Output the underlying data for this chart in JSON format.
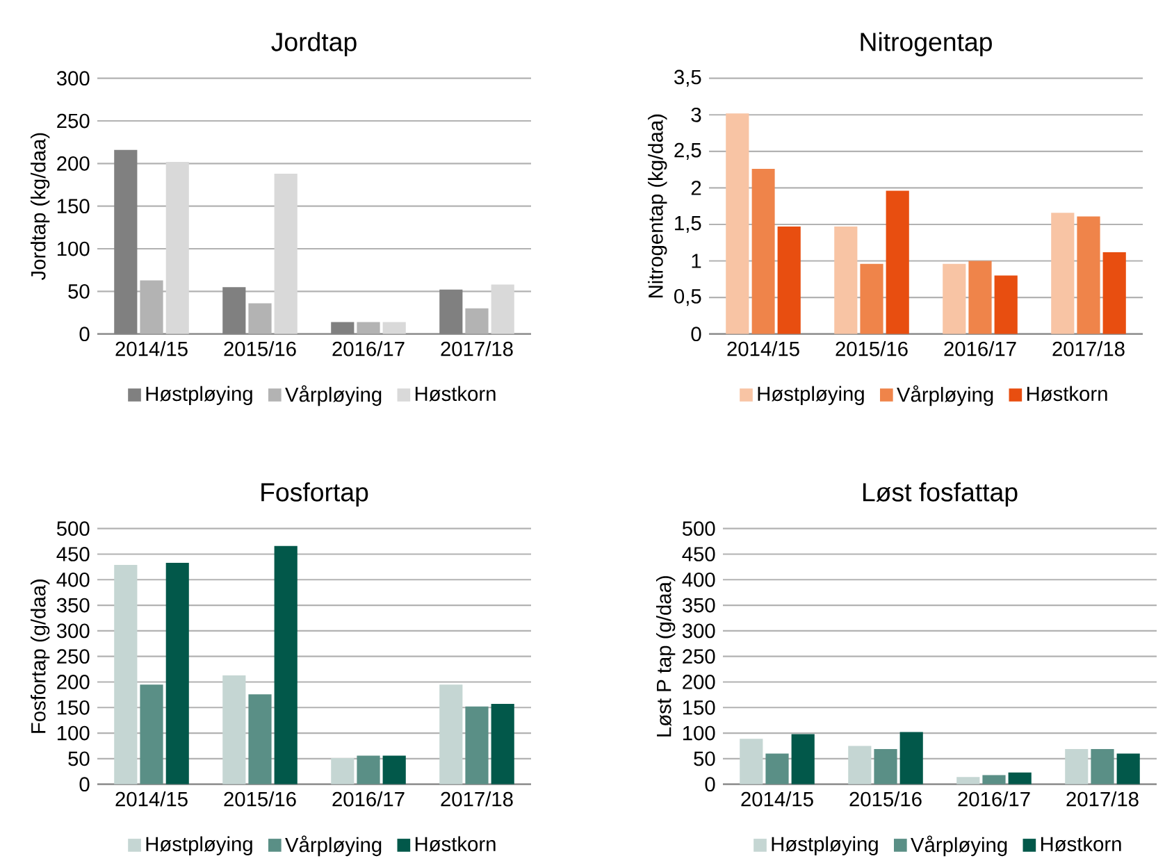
{
  "chart_data": [
    {
      "type": "bar",
      "title": "Jordtap",
      "ylabel": "Jordtap (kg/daa)",
      "categories": [
        "2014/15",
        "2015/16",
        "2016/17",
        "2017/18"
      ],
      "ylim": [
        0,
        300
      ],
      "yticks": [
        0,
        50,
        100,
        150,
        200,
        250,
        300
      ],
      "grid": "y",
      "legend": "bottom",
      "series": [
        {
          "name": "Høstpløying",
          "color": "#808080",
          "values": [
            216,
            55,
            14,
            52
          ]
        },
        {
          "name": "Vårpløying",
          "color": "#b3b3b3",
          "values": [
            63,
            36,
            14,
            30
          ]
        },
        {
          "name": "Høstkorn",
          "color": "#d9d9d9",
          "values": [
            202,
            188,
            14,
            58
          ]
        }
      ]
    },
    {
      "type": "bar",
      "title": "Nitrogentap",
      "ylabel": "Nitrogentap (kg/daa)",
      "categories": [
        "2014/15",
        "2015/16",
        "2016/17",
        "2017/18"
      ],
      "ylim": [
        0,
        3.5
      ],
      "yticks": [
        0,
        {
          "value": 0.5,
          "label": "0,5"
        },
        1,
        {
          "value": 1.5,
          "label": "1,5"
        },
        2,
        {
          "value": 2.5,
          "label": "2,5"
        },
        3,
        {
          "value": 3.5,
          "label": "3,5"
        }
      ],
      "grid": "y",
      "legend": "bottom",
      "series": [
        {
          "name": "Høstpløying",
          "color": "#f8c4a4",
          "values": [
            3.02,
            1.47,
            0.96,
            1.66
          ]
        },
        {
          "name": "Vårpløying",
          "color": "#ef844a",
          "values": [
            2.26,
            0.96,
            1.0,
            1.61
          ]
        },
        {
          "name": "Høstkorn",
          "color": "#e84e10",
          "values": [
            1.47,
            1.96,
            0.8,
            1.12
          ]
        }
      ]
    },
    {
      "type": "bar",
      "title": "Fosfortap",
      "ylabel": "Fosfortap (g/daa)",
      "categories": [
        "2014/15",
        "2015/16",
        "2016/17",
        "2017/18"
      ],
      "ylim": [
        0,
        500
      ],
      "yticks": [
        0,
        50,
        100,
        150,
        200,
        250,
        300,
        350,
        400,
        450,
        500
      ],
      "grid": "y",
      "legend": "bottom",
      "series": [
        {
          "name": "Høstpløying",
          "color": "#c5d6d3",
          "values": [
            429,
            213,
            51,
            195
          ]
        },
        {
          "name": "Vårpløying",
          "color": "#5a8f86",
          "values": [
            195,
            176,
            56,
            152
          ]
        },
        {
          "name": "Høstkorn",
          "color": "#02584a",
          "values": [
            433,
            466,
            56,
            157
          ]
        }
      ]
    },
    {
      "type": "bar",
      "title": "Løst fosfattap",
      "ylabel": "Løst P tap (g/daa)",
      "categories": [
        "2014/15",
        "2015/16",
        "2016/17",
        "2017/18"
      ],
      "ylim": [
        0,
        500
      ],
      "yticks": [
        0,
        50,
        100,
        150,
        200,
        250,
        300,
        350,
        400,
        450,
        500
      ],
      "grid": "y",
      "legend": "bottom",
      "series": [
        {
          "name": "Høstpløying",
          "color": "#c5d6d3",
          "values": [
            89,
            75,
            14,
            69
          ]
        },
        {
          "name": "Vårpløying",
          "color": "#5a8f86",
          "values": [
            60,
            69,
            18,
            69
          ]
        },
        {
          "name": "Høstkorn",
          "color": "#02584a",
          "values": [
            98,
            102,
            23,
            60
          ]
        }
      ]
    }
  ]
}
